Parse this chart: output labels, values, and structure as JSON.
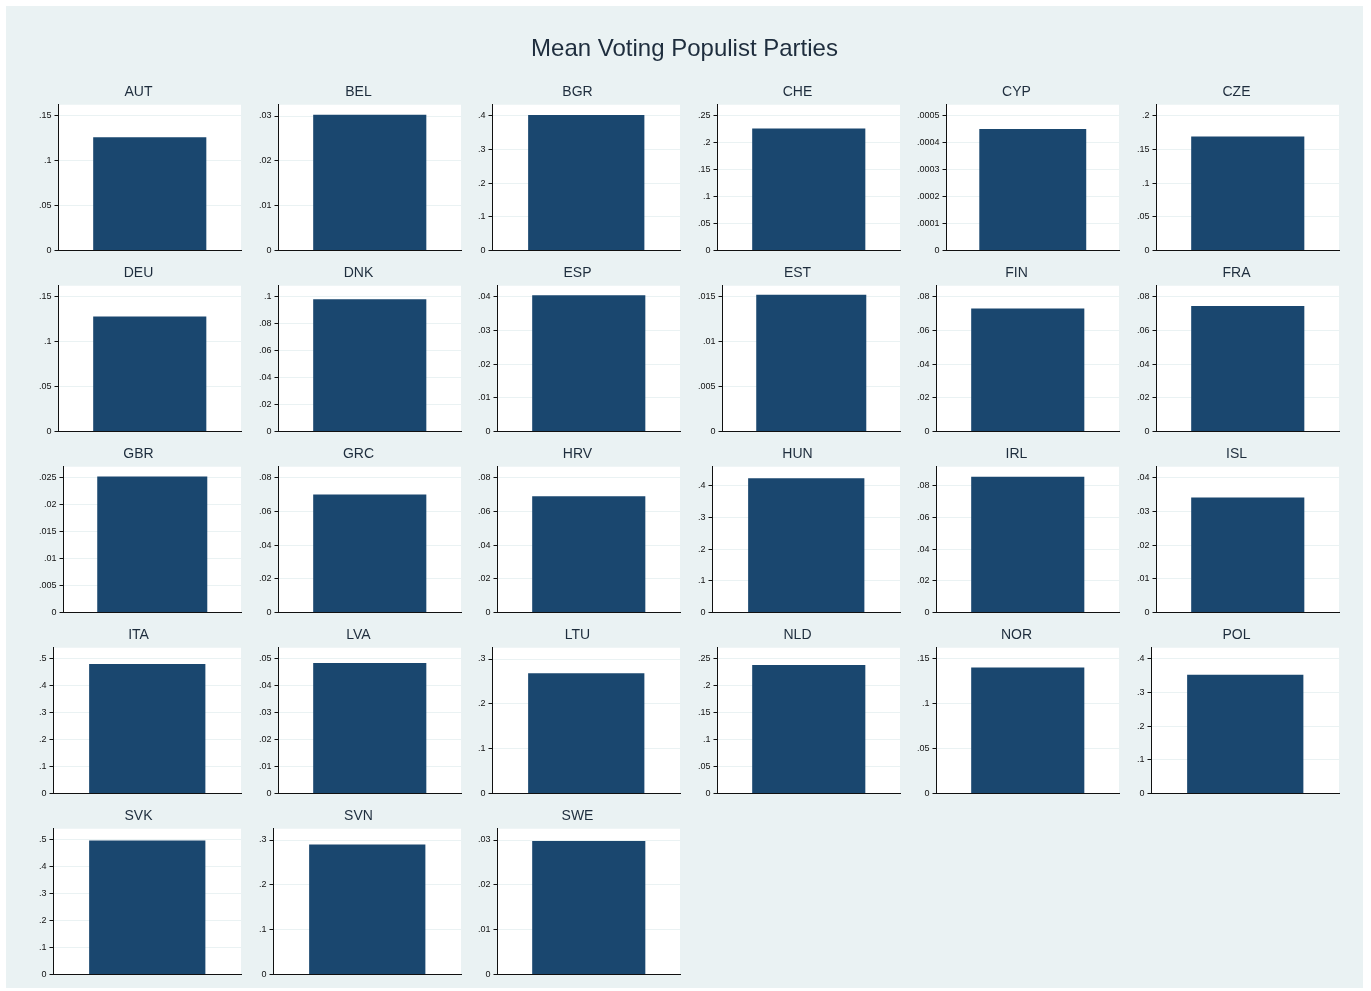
{
  "chart_data": [
    {
      "type": "other",
      "title": "Mean Voting Populist Parties"
    },
    {
      "type": "bar",
      "title": "AUT",
      "categories": [
        null
      ],
      "values": [
        0.126
      ],
      "color": "#1a476f",
      "ylim": [
        0,
        0.162
      ],
      "yticks": [
        {
          "value": 0,
          "label": "0"
        },
        {
          "value": 0.05,
          "label": ".05"
        },
        {
          "value": 0.1,
          "label": ".1"
        },
        {
          "value": 0.15,
          "label": ".15"
        }
      ],
      "grid": "y",
      "tick_labels": "y"
    },
    {
      "type": "bar",
      "title": "BEL",
      "categories": [
        null
      ],
      "values": [
        0.0303
      ],
      "color": "#1a476f",
      "ylim": [
        0,
        0.0325
      ],
      "yticks": [
        {
          "value": 0,
          "label": "0"
        },
        {
          "value": 0.01,
          "label": ".01"
        },
        {
          "value": 0.02,
          "label": ".02"
        },
        {
          "value": 0.03,
          "label": ".03"
        }
      ],
      "grid": "y",
      "tick_labels": "y"
    },
    {
      "type": "bar",
      "title": "BGR",
      "categories": [
        null
      ],
      "values": [
        0.403
      ],
      "color": "#1a476f",
      "ylim": [
        0,
        0.433
      ],
      "yticks": [
        {
          "value": 0,
          "label": "0"
        },
        {
          "value": 0.1,
          "label": ".1"
        },
        {
          "value": 0.2,
          "label": ".2"
        },
        {
          "value": 0.3,
          "label": ".3"
        },
        {
          "value": 0.4,
          "label": ".4"
        }
      ],
      "grid": "y",
      "tick_labels": "y"
    },
    {
      "type": "bar",
      "title": "CHE",
      "categories": [
        null
      ],
      "values": [
        0.226
      ],
      "color": "#1a476f",
      "ylim": [
        0,
        0.27
      ],
      "yticks": [
        {
          "value": 0,
          "label": "0"
        },
        {
          "value": 0.05,
          "label": ".05"
        },
        {
          "value": 0.1,
          "label": ".1"
        },
        {
          "value": 0.15,
          "label": ".15"
        },
        {
          "value": 0.2,
          "label": ".2"
        },
        {
          "value": 0.25,
          "label": ".25"
        }
      ],
      "grid": "y",
      "tick_labels": "y"
    },
    {
      "type": "bar",
      "title": "CYP",
      "categories": [
        null
      ],
      "values": [
        0.00045
      ],
      "color": "#1a476f",
      "ylim": [
        0,
        0.00054
      ],
      "yticks": [
        {
          "value": 0,
          "label": "0"
        },
        {
          "value": 0.0001,
          "label": ".0001"
        },
        {
          "value": 0.0002,
          "label": ".0002"
        },
        {
          "value": 0.0003,
          "label": ".0003"
        },
        {
          "value": 0.0004,
          "label": ".0004"
        },
        {
          "value": 0.0005,
          "label": ".0005"
        }
      ],
      "grid": "y",
      "tick_labels": "y"
    },
    {
      "type": "bar",
      "title": "CZE",
      "categories": [
        null
      ],
      "values": [
        0.169
      ],
      "color": "#1a476f",
      "ylim": [
        0,
        0.216
      ],
      "yticks": [
        {
          "value": 0,
          "label": "0"
        },
        {
          "value": 0.05,
          "label": ".05"
        },
        {
          "value": 0.1,
          "label": ".1"
        },
        {
          "value": 0.15,
          "label": ".15"
        },
        {
          "value": 0.2,
          "label": ".2"
        }
      ],
      "grid": "y",
      "tick_labels": "y"
    },
    {
      "type": "bar",
      "title": "DEU",
      "categories": [
        null
      ],
      "values": [
        0.128
      ],
      "color": "#1a476f",
      "ylim": [
        0,
        0.162
      ],
      "yticks": [
        {
          "value": 0,
          "label": "0"
        },
        {
          "value": 0.05,
          "label": ".05"
        },
        {
          "value": 0.1,
          "label": ".1"
        },
        {
          "value": 0.15,
          "label": ".15"
        }
      ],
      "grid": "y",
      "tick_labels": "y"
    },
    {
      "type": "bar",
      "title": "DNK",
      "categories": [
        null
      ],
      "values": [
        0.098
      ],
      "color": "#1a476f",
      "ylim": [
        0,
        0.108
      ],
      "yticks": [
        {
          "value": 0,
          "label": "0"
        },
        {
          "value": 0.02,
          "label": ".02"
        },
        {
          "value": 0.04,
          "label": ".04"
        },
        {
          "value": 0.06,
          "label": ".06"
        },
        {
          "value": 0.08,
          "label": ".08"
        },
        {
          "value": 0.1,
          "label": ".1"
        }
      ],
      "grid": "y",
      "tick_labels": "y"
    },
    {
      "type": "bar",
      "title": "ESP",
      "categories": [
        null
      ],
      "values": [
        0.0405
      ],
      "color": "#1a476f",
      "ylim": [
        0,
        0.0433
      ],
      "yticks": [
        {
          "value": 0,
          "label": "0"
        },
        {
          "value": 0.01,
          "label": ".01"
        },
        {
          "value": 0.02,
          "label": ".02"
        },
        {
          "value": 0.03,
          "label": ".03"
        },
        {
          "value": 0.04,
          "label": ".04"
        }
      ],
      "grid": "y",
      "tick_labels": "y"
    },
    {
      "type": "bar",
      "title": "EST",
      "categories": [
        null
      ],
      "values": [
        0.0152
      ],
      "color": "#1a476f",
      "ylim": [
        0,
        0.0162
      ],
      "yticks": [
        {
          "value": 0,
          "label": "0"
        },
        {
          "value": 0.005,
          "label": ".005"
        },
        {
          "value": 0.01,
          "label": ".01"
        },
        {
          "value": 0.015,
          "label": ".015"
        }
      ],
      "grid": "y",
      "tick_labels": "y"
    },
    {
      "type": "bar",
      "title": "FIN",
      "categories": [
        null
      ],
      "values": [
        0.073
      ],
      "color": "#1a476f",
      "ylim": [
        0,
        0.0865
      ],
      "yticks": [
        {
          "value": 0,
          "label": "0"
        },
        {
          "value": 0.02,
          "label": ".02"
        },
        {
          "value": 0.04,
          "label": ".04"
        },
        {
          "value": 0.06,
          "label": ".06"
        },
        {
          "value": 0.08,
          "label": ".08"
        }
      ],
      "grid": "y",
      "tick_labels": "y"
    },
    {
      "type": "bar",
      "title": "FRA",
      "categories": [
        null
      ],
      "values": [
        0.0745
      ],
      "color": "#1a476f",
      "ylim": [
        0,
        0.0865
      ],
      "yticks": [
        {
          "value": 0,
          "label": "0"
        },
        {
          "value": 0.02,
          "label": ".02"
        },
        {
          "value": 0.04,
          "label": ".04"
        },
        {
          "value": 0.06,
          "label": ".06"
        },
        {
          "value": 0.08,
          "label": ".08"
        }
      ],
      "grid": "y",
      "tick_labels": "y"
    },
    {
      "type": "bar",
      "title": "GBR",
      "categories": [
        null
      ],
      "values": [
        0.0252
      ],
      "color": "#1a476f",
      "ylim": [
        0,
        0.027
      ],
      "yticks": [
        {
          "value": 0,
          "label": "0"
        },
        {
          "value": 0.005,
          "label": ".005"
        },
        {
          "value": 0.01,
          "label": ".01"
        },
        {
          "value": 0.015,
          "label": ".015"
        },
        {
          "value": 0.02,
          "label": ".02"
        },
        {
          "value": 0.025,
          "label": ".025"
        }
      ],
      "grid": "y",
      "tick_labels": "y"
    },
    {
      "type": "bar",
      "title": "GRC",
      "categories": [
        null
      ],
      "values": [
        0.07
      ],
      "color": "#1a476f",
      "ylim": [
        0,
        0.0865
      ],
      "yticks": [
        {
          "value": 0,
          "label": "0"
        },
        {
          "value": 0.02,
          "label": ".02"
        },
        {
          "value": 0.04,
          "label": ".04"
        },
        {
          "value": 0.06,
          "label": ".06"
        },
        {
          "value": 0.08,
          "label": ".08"
        }
      ],
      "grid": "y",
      "tick_labels": "y"
    },
    {
      "type": "bar",
      "title": "HRV",
      "categories": [
        null
      ],
      "values": [
        0.069
      ],
      "color": "#1a476f",
      "ylim": [
        0,
        0.0865
      ],
      "yticks": [
        {
          "value": 0,
          "label": "0"
        },
        {
          "value": 0.02,
          "label": ".02"
        },
        {
          "value": 0.04,
          "label": ".04"
        },
        {
          "value": 0.06,
          "label": ".06"
        },
        {
          "value": 0.08,
          "label": ".08"
        }
      ],
      "grid": "y",
      "tick_labels": "y"
    },
    {
      "type": "bar",
      "title": "HUN",
      "categories": [
        null
      ],
      "values": [
        0.424
      ],
      "color": "#1a476f",
      "ylim": [
        0,
        0.46
      ],
      "yticks": [
        {
          "value": 0,
          "label": "0"
        },
        {
          "value": 0.1,
          "label": ".1"
        },
        {
          "value": 0.2,
          "label": ".2"
        },
        {
          "value": 0.3,
          "label": ".3"
        },
        {
          "value": 0.4,
          "label": ".4"
        }
      ],
      "grid": "y",
      "tick_labels": "y"
    },
    {
      "type": "bar",
      "title": "IRL",
      "categories": [
        null
      ],
      "values": [
        0.0857
      ],
      "color": "#1a476f",
      "ylim": [
        0,
        0.092
      ],
      "yticks": [
        {
          "value": 0,
          "label": "0"
        },
        {
          "value": 0.02,
          "label": ".02"
        },
        {
          "value": 0.04,
          "label": ".04"
        },
        {
          "value": 0.06,
          "label": ".06"
        },
        {
          "value": 0.08,
          "label": ".08"
        }
      ],
      "grid": "y",
      "tick_labels": "y"
    },
    {
      "type": "bar",
      "title": "ISL",
      "categories": [
        null
      ],
      "values": [
        0.0342
      ],
      "color": "#1a476f",
      "ylim": [
        0,
        0.0433
      ],
      "yticks": [
        {
          "value": 0,
          "label": "0"
        },
        {
          "value": 0.01,
          "label": ".01"
        },
        {
          "value": 0.02,
          "label": ".02"
        },
        {
          "value": 0.03,
          "label": ".03"
        },
        {
          "value": 0.04,
          "label": ".04"
        }
      ],
      "grid": "y",
      "tick_labels": "y"
    },
    {
      "type": "bar",
      "title": "ITA",
      "categories": [
        null
      ],
      "values": [
        0.48
      ],
      "color": "#1a476f",
      "ylim": [
        0,
        0.54
      ],
      "yticks": [
        {
          "value": 0,
          "label": "0"
        },
        {
          "value": 0.1,
          "label": ".1"
        },
        {
          "value": 0.2,
          "label": ".2"
        },
        {
          "value": 0.3,
          "label": ".3"
        },
        {
          "value": 0.4,
          "label": ".4"
        },
        {
          "value": 0.5,
          "label": ".5"
        }
      ],
      "grid": "y",
      "tick_labels": "y"
    },
    {
      "type": "bar",
      "title": "LVA",
      "categories": [
        null
      ],
      "values": [
        0.0484
      ],
      "color": "#1a476f",
      "ylim": [
        0,
        0.054
      ],
      "yticks": [
        {
          "value": 0,
          "label": "0"
        },
        {
          "value": 0.01,
          "label": ".01"
        },
        {
          "value": 0.02,
          "label": ".02"
        },
        {
          "value": 0.03,
          "label": ".03"
        },
        {
          "value": 0.04,
          "label": ".04"
        },
        {
          "value": 0.05,
          "label": ".05"
        }
      ],
      "grid": "y",
      "tick_labels": "y"
    },
    {
      "type": "bar",
      "title": "LTU",
      "categories": [
        null
      ],
      "values": [
        0.268
      ],
      "color": "#1a476f",
      "ylim": [
        0,
        0.325
      ],
      "yticks": [
        {
          "value": 0,
          "label": "0"
        },
        {
          "value": 0.1,
          "label": ".1"
        },
        {
          "value": 0.2,
          "label": ".2"
        },
        {
          "value": 0.3,
          "label": ".3"
        }
      ],
      "grid": "y",
      "tick_labels": "y"
    },
    {
      "type": "bar",
      "title": "NLD",
      "categories": [
        null
      ],
      "values": [
        0.238
      ],
      "color": "#1a476f",
      "ylim": [
        0,
        0.27
      ],
      "yticks": [
        {
          "value": 0,
          "label": "0"
        },
        {
          "value": 0.05,
          "label": ".05"
        },
        {
          "value": 0.1,
          "label": ".1"
        },
        {
          "value": 0.15,
          "label": ".15"
        },
        {
          "value": 0.2,
          "label": ".2"
        },
        {
          "value": 0.25,
          "label": ".25"
        }
      ],
      "grid": "y",
      "tick_labels": "y"
    },
    {
      "type": "bar",
      "title": "NOR",
      "categories": [
        null
      ],
      "values": [
        0.14
      ],
      "color": "#1a476f",
      "ylim": [
        0,
        0.162
      ],
      "yticks": [
        {
          "value": 0,
          "label": "0"
        },
        {
          "value": 0.05,
          "label": ".05"
        },
        {
          "value": 0.1,
          "label": ".1"
        },
        {
          "value": 0.15,
          "label": ".15"
        }
      ],
      "grid": "y",
      "tick_labels": "y"
    },
    {
      "type": "bar",
      "title": "POL",
      "categories": [
        null
      ],
      "values": [
        0.352
      ],
      "color": "#1a476f",
      "ylim": [
        0,
        0.432
      ],
      "yticks": [
        {
          "value": 0,
          "label": "0"
        },
        {
          "value": 0.1,
          "label": ".1"
        },
        {
          "value": 0.2,
          "label": ".2"
        },
        {
          "value": 0.3,
          "label": ".3"
        },
        {
          "value": 0.4,
          "label": ".4"
        }
      ],
      "grid": "y",
      "tick_labels": "y"
    },
    {
      "type": "bar",
      "title": "SVK",
      "categories": [
        null
      ],
      "values": [
        0.497
      ],
      "color": "#1a476f",
      "ylim": [
        0,
        0.54
      ],
      "yticks": [
        {
          "value": 0,
          "label": "0"
        },
        {
          "value": 0.1,
          "label": ".1"
        },
        {
          "value": 0.2,
          "label": ".2"
        },
        {
          "value": 0.3,
          "label": ".3"
        },
        {
          "value": 0.4,
          "label": ".4"
        },
        {
          "value": 0.5,
          "label": ".5"
        }
      ],
      "grid": "y",
      "tick_labels": "y"
    },
    {
      "type": "bar",
      "title": "SVN",
      "categories": [
        null
      ],
      "values": [
        0.29
      ],
      "color": "#1a476f",
      "ylim": [
        0,
        0.325
      ],
      "yticks": [
        {
          "value": 0,
          "label": "0"
        },
        {
          "value": 0.1,
          "label": ".1"
        },
        {
          "value": 0.2,
          "label": ".2"
        },
        {
          "value": 0.3,
          "label": ".3"
        }
      ],
      "grid": "y",
      "tick_labels": "y"
    },
    {
      "type": "bar",
      "title": "SWE",
      "categories": [
        null
      ],
      "values": [
        0.0298
      ],
      "color": "#1a476f",
      "ylim": [
        0,
        0.0325
      ],
      "yticks": [
        {
          "value": 0,
          "label": "0"
        },
        {
          "value": 0.01,
          "label": ".01"
        },
        {
          "value": 0.02,
          "label": ".02"
        },
        {
          "value": 0.03,
          "label": ".03"
        }
      ],
      "grid": "y",
      "tick_labels": "y"
    }
  ]
}
